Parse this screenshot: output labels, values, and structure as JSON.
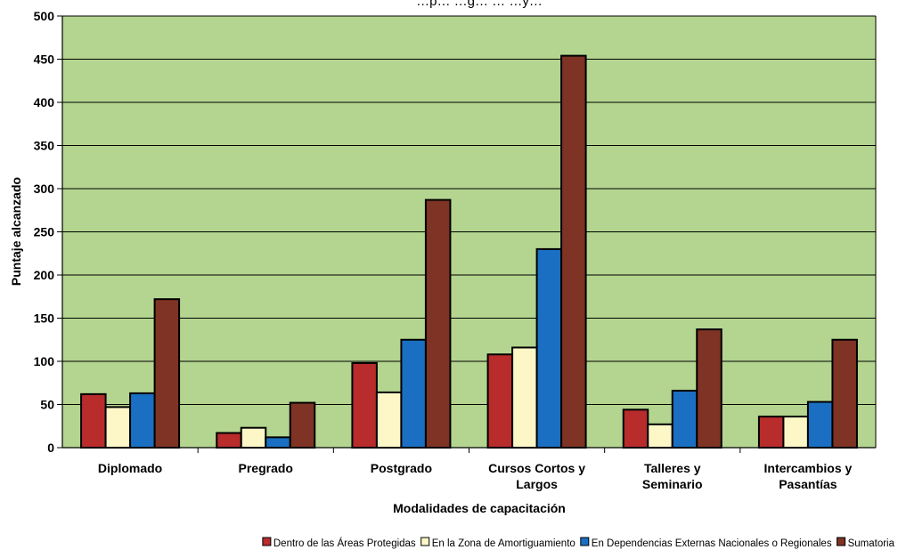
{
  "chart_data": {
    "type": "bar",
    "title": "…p… …g… … …y…",
    "xlabel": "Modalidades de capacitación",
    "ylabel": "Puntaje alcanzado",
    "ylim": [
      0,
      500
    ],
    "yticks": [
      0,
      50,
      100,
      150,
      200,
      250,
      300,
      350,
      400,
      450,
      500
    ],
    "grid": true,
    "legend_position": "bottom-right",
    "categories": [
      [
        "Diplomado"
      ],
      [
        "Pregrado"
      ],
      [
        "Postgrado"
      ],
      [
        "Cursos Cortos y",
        "Largos"
      ],
      [
        "Talleres y",
        "Seminario"
      ],
      [
        "Intercambios y",
        "Pasantías"
      ]
    ],
    "series": [
      {
        "name": "Dentro de las Áreas Protegidas",
        "color": "#b82c2c",
        "values": [
          62,
          17,
          98,
          108,
          44,
          36
        ]
      },
      {
        "name": "En la Zona de Amortiguamiento",
        "color": "#fdf7c7",
        "values": [
          47,
          23,
          64,
          116,
          27,
          36
        ]
      },
      {
        "name": "En Dependencias Externas Nacionales o Regionales",
        "color": "#1a6fc2",
        "values": [
          63,
          12,
          125,
          230,
          66,
          53
        ]
      },
      {
        "name": "Sumatoria",
        "color": "#7e3324",
        "values": [
          172,
          52,
          287,
          454,
          137,
          125
        ]
      }
    ],
    "colors": {
      "plot_background": "#b3d58f",
      "outer_background": "#ffffff",
      "gridline": "#000000"
    }
  }
}
